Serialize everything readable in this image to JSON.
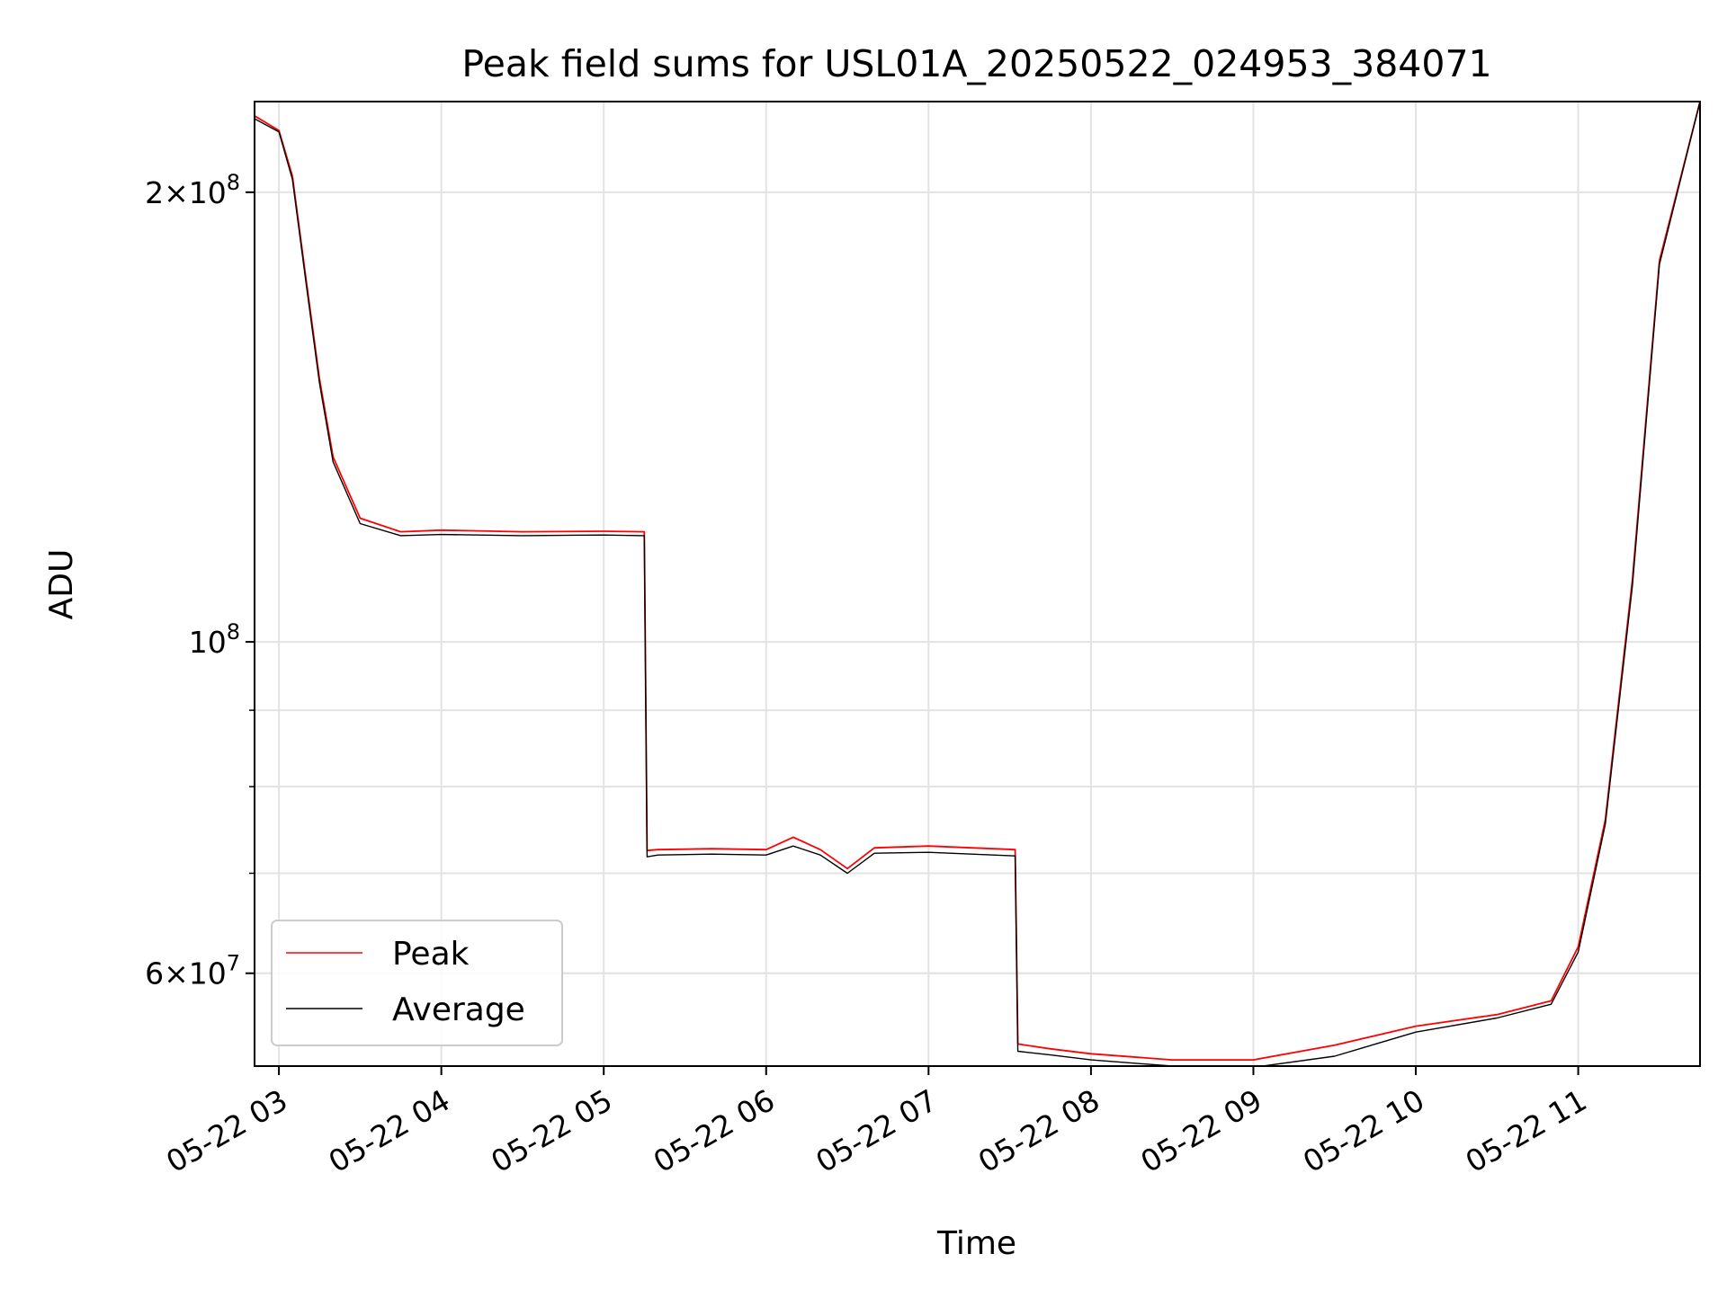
{
  "chart_data": {
    "type": "line",
    "title": "Peak field sums for USL01A_20250522_024953_384071",
    "xlabel": "Time",
    "ylabel": "ADU",
    "yscale": "log",
    "xlim": [
      "05-22 02:51",
      "05-22 11:45"
    ],
    "ylim": [
      52000000,
      230000000
    ],
    "grid": true,
    "legend_position": "lower-left",
    "x_ticks": [
      {
        "label": "05-22 03",
        "hour": 3
      },
      {
        "label": "05-22 04",
        "hour": 4
      },
      {
        "label": "05-22 05",
        "hour": 5
      },
      {
        "label": "05-22 06",
        "hour": 6
      },
      {
        "label": "05-22 07",
        "hour": 7
      },
      {
        "label": "05-22 08",
        "hour": 8
      },
      {
        "label": "05-22 09",
        "hour": 9
      },
      {
        "label": "05-22 10",
        "hour": 10
      },
      {
        "label": "05-22 11",
        "hour": 11
      }
    ],
    "y_ticks_major": [
      {
        "value": 60000000,
        "mant": "6",
        "exp": "7"
      },
      {
        "value": 100000000,
        "mant": "",
        "exp": "8"
      },
      {
        "value": 200000000,
        "mant": "2",
        "exp": "8"
      }
    ],
    "y_ticks_minor": [
      50000000,
      60000000,
      70000000,
      80000000,
      90000000
    ],
    "series": [
      {
        "name": "Peak",
        "color": "#ff0000",
        "x": [
          "05-22 02:51",
          "05-22 03:00",
          "05-22 03:05",
          "05-22 03:10",
          "05-22 03:15",
          "05-22 03:20",
          "05-22 03:30",
          "05-22 03:45",
          "05-22 04:00",
          "05-22 04:30",
          "05-22 05:00",
          "05-22 05:15",
          "05-22 05:16",
          "05-22 05:20",
          "05-22 05:40",
          "05-22 06:00",
          "05-22 06:10",
          "05-22 06:20",
          "05-22 06:30",
          "05-22 06:40",
          "05-22 07:00",
          "05-22 07:32",
          "05-22 07:33",
          "05-22 07:45",
          "05-22 08:00",
          "05-22 08:30",
          "05-22 09:00",
          "05-22 09:30",
          "05-22 10:00",
          "05-22 10:30",
          "05-22 10:50",
          "05-22 11:00",
          "05-22 11:10",
          "05-22 11:20",
          "05-22 11:30",
          "05-22 11:45"
        ],
        "y": [
          225000000,
          220000000,
          205000000,
          175000000,
          150000000,
          133000000,
          121000000,
          118500000,
          118800000,
          118500000,
          118600000,
          118500000,
          72500000,
          72600000,
          72700000,
          72600000,
          74000000,
          72600000,
          70500000,
          72800000,
          73000000,
          72600000,
          53800000,
          53400000,
          53000000,
          52500000,
          52500000,
          53700000,
          55300000,
          56300000,
          57500000,
          62500000,
          76000000,
          110000000,
          180000000,
          230000000
        ]
      },
      {
        "name": "Average",
        "color": "#000000",
        "x": [
          "05-22 02:51",
          "05-22 03:00",
          "05-22 03:05",
          "05-22 03:10",
          "05-22 03:15",
          "05-22 03:20",
          "05-22 03:30",
          "05-22 03:45",
          "05-22 04:00",
          "05-22 04:30",
          "05-22 05:00",
          "05-22 05:15",
          "05-22 05:16",
          "05-22 05:20",
          "05-22 05:40",
          "05-22 06:00",
          "05-22 06:10",
          "05-22 06:20",
          "05-22 06:30",
          "05-22 06:40",
          "05-22 07:00",
          "05-22 07:32",
          "05-22 07:33",
          "05-22 07:45",
          "05-22 08:00",
          "05-22 08:30",
          "05-22 09:00",
          "05-22 09:30",
          "05-22 10:00",
          "05-22 10:30",
          "05-22 10:50",
          "05-22 11:00",
          "05-22 11:10",
          "05-22 11:20",
          "05-22 11:30",
          "05-22 11:45"
        ],
        "y": [
          224000000,
          219500000,
          204000000,
          174000000,
          149000000,
          132000000,
          120000000,
          117800000,
          118000000,
          117800000,
          117900000,
          117800000,
          71800000,
          72000000,
          72100000,
          72000000,
          73000000,
          72000000,
          70000000,
          72200000,
          72300000,
          71900000,
          53200000,
          52900000,
          52500000,
          52000000,
          51900000,
          52800000,
          54800000,
          56000000,
          57200000,
          62000000,
          75500000,
          109000000,
          179000000,
          230000000
        ]
      }
    ]
  }
}
